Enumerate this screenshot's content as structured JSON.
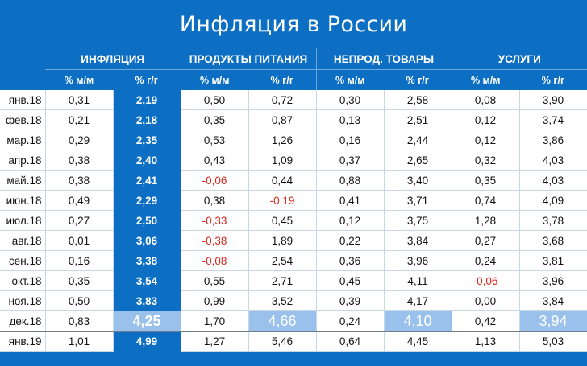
{
  "title": "Инфляция в России",
  "groups": [
    "ИНФЛЯЦИЯ",
    "ПРОДУКТЫ ПИТАНИЯ",
    "НЕПРОД. ТОВАРЫ",
    "УСЛУГИ"
  ],
  "subheaders": {
    "mm": "% м/м",
    "yy": "% г/г"
  },
  "rows": [
    {
      "month": "янв.18",
      "values": [
        "0,31",
        "2,19",
        "0,50",
        "0,72",
        "0,30",
        "2,58",
        "0,08",
        "3,90"
      ]
    },
    {
      "month": "фев.18",
      "values": [
        "0,21",
        "2,18",
        "0,35",
        "0,87",
        "0,13",
        "2,51",
        "0,12",
        "3,74"
      ]
    },
    {
      "month": "мар.18",
      "values": [
        "0,29",
        "2,35",
        "0,53",
        "1,26",
        "0,16",
        "2,44",
        "0,12",
        "3,86"
      ]
    },
    {
      "month": "апр.18",
      "values": [
        "0,38",
        "2,40",
        "0,43",
        "1,09",
        "0,37",
        "2,65",
        "0,32",
        "4,03"
      ]
    },
    {
      "month": "май.18",
      "values": [
        "0,38",
        "2,41",
        "-0,06",
        "0,44",
        "0,88",
        "3,40",
        "0,35",
        "4,03"
      ]
    },
    {
      "month": "июн.18",
      "values": [
        "0,49",
        "2,29",
        "0,38",
        "-0,19",
        "0,41",
        "3,71",
        "0,74",
        "4,09"
      ]
    },
    {
      "month": "июл.18",
      "values": [
        "0,27",
        "2,50",
        "-0,33",
        "0,45",
        "0,12",
        "3,75",
        "1,28",
        "3,78"
      ]
    },
    {
      "month": "авг.18",
      "values": [
        "0,01",
        "3,06",
        "-0,38",
        "1,89",
        "0,22",
        "3,84",
        "0,27",
        "3,68"
      ]
    },
    {
      "month": "сен.18",
      "values": [
        "0,16",
        "3,38",
        "-0,08",
        "2,54",
        "0,36",
        "3,96",
        "0,24",
        "3,81"
      ]
    },
    {
      "month": "окт.18",
      "values": [
        "0,35",
        "3,54",
        "0,55",
        "2,71",
        "0,45",
        "4,11",
        "-0,06",
        "3,96"
      ]
    },
    {
      "month": "ноя.18",
      "values": [
        "0,50",
        "3,83",
        "0,99",
        "3,52",
        "0,39",
        "4,17",
        "0,00",
        "3,84"
      ]
    },
    {
      "month": "дек.18",
      "values": [
        "0,83",
        "4,25",
        "1,70",
        "4,66",
        "0,24",
        "4,10",
        "0,42",
        "3,94"
      ]
    },
    {
      "month": "янв.19",
      "values": [
        "1,01",
        "4,99",
        "1,27",
        "5,46",
        "0,64",
        "4,45",
        "1,13",
        "5,03"
      ]
    }
  ],
  "colors": {
    "background": "#0d6fc4",
    "highlight": "#99c1ec",
    "negative": "#d7261c"
  }
}
